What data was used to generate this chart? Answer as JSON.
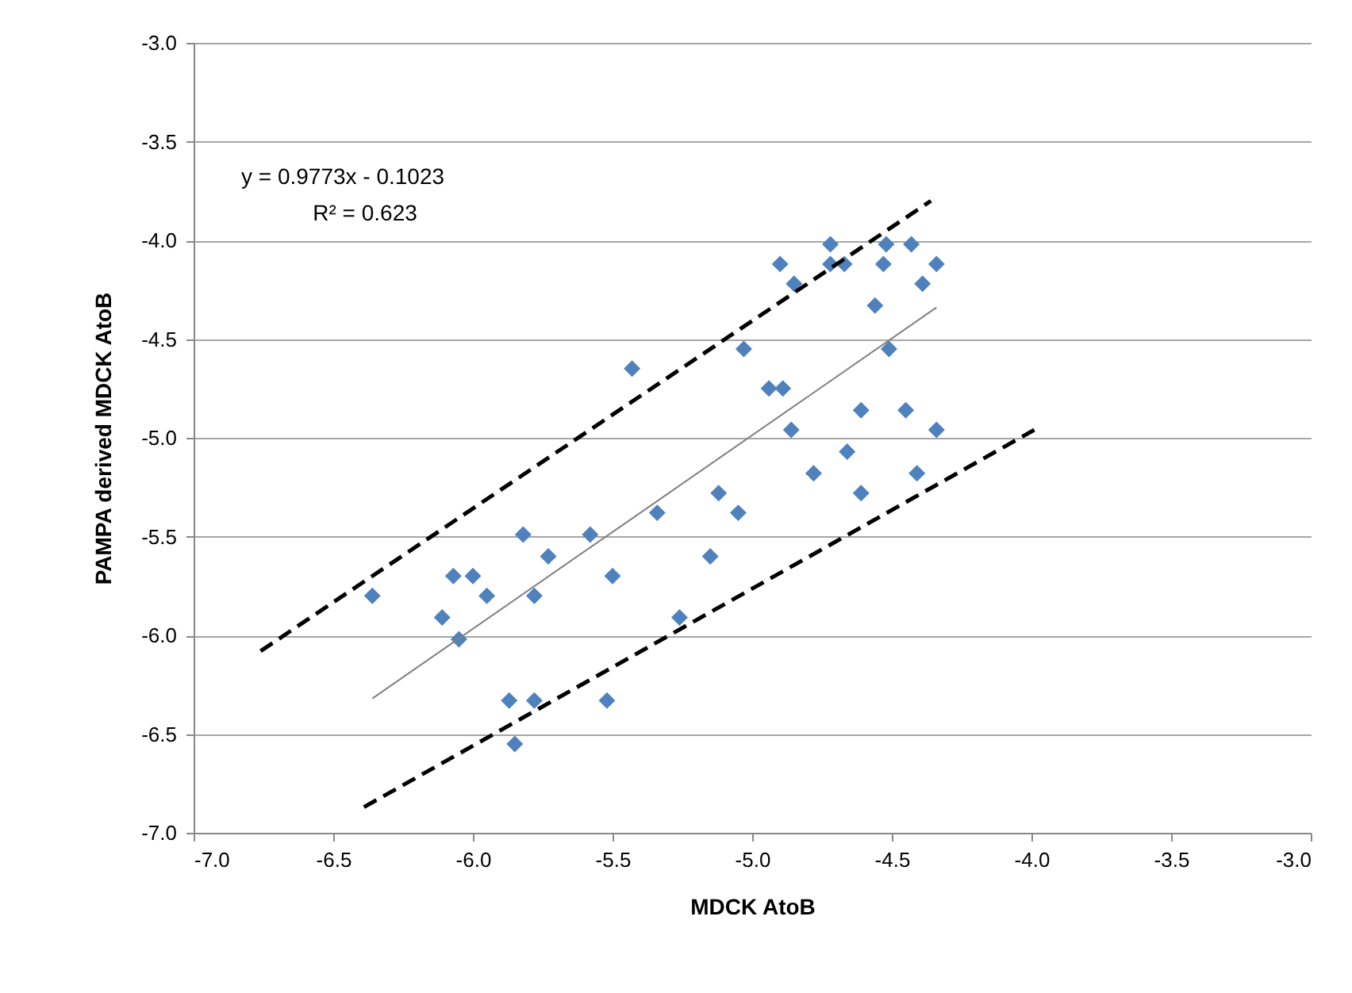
{
  "chart_data": {
    "type": "scatter",
    "xlabel": "MDCK AtoB",
    "ylabel": "PAMPA derived MDCK AtoB",
    "annotations": [
      "y = 0.9773x - 0.1023",
      "R² = 0.623"
    ],
    "xlim": [
      -7,
      -3
    ],
    "ylim": [
      -7,
      -3
    ],
    "xticks": [
      {
        "value": -7,
        "label": "-7.0"
      },
      {
        "value": -6.5,
        "label": "-6.5"
      },
      {
        "value": -6,
        "label": "-6.0"
      },
      {
        "value": -5.5,
        "label": "-5.5"
      },
      {
        "value": -5,
        "label": "-5.0"
      },
      {
        "value": -4.5,
        "label": "-4.5"
      },
      {
        "value": -4,
        "label": "-4.0"
      },
      {
        "value": -3.5,
        "label": "-3.5"
      },
      {
        "value": -3,
        "label": "-3.0"
      }
    ],
    "yticks": [
      {
        "value": -7,
        "label": "-7.0"
      },
      {
        "value": -6.5,
        "label": "-6.5"
      },
      {
        "value": -6,
        "label": "-6.0"
      },
      {
        "value": -5.5,
        "label": "-5.5"
      },
      {
        "value": -5,
        "label": "-5.0"
      },
      {
        "value": -4.5,
        "label": "-4.5"
      },
      {
        "value": -4,
        "label": "-4.0"
      },
      {
        "value": -3.5,
        "label": "-3.5"
      },
      {
        "value": -3,
        "label": "-3.0"
      }
    ],
    "grid": "y",
    "series": [
      {
        "marker": "diamond",
        "color": "#4f81bd",
        "x": [
          -6.36,
          -6.11,
          -6.07,
          -6.05,
          -6.0,
          -5.95,
          -5.87,
          -5.85,
          -5.82,
          -5.78,
          -5.78,
          -5.73,
          -5.58,
          -5.52,
          -5.5,
          -5.43,
          -5.34,
          -5.26,
          -5.15,
          -5.12,
          -5.03,
          -5.05,
          -4.94,
          -4.89,
          -4.9,
          -4.85,
          -4.86,
          -4.78,
          -4.72,
          -4.72,
          -4.67,
          -4.66,
          -4.61,
          -4.61,
          -4.56,
          -4.53,
          -4.52,
          -4.51,
          -4.45,
          -4.43,
          -4.41,
          -4.39,
          -4.34,
          -4.34
        ],
        "values": [
          -5.8,
          -5.91,
          -5.7,
          -6.02,
          -5.7,
          -5.8,
          -6.33,
          -6.55,
          -5.49,
          -6.33,
          -5.8,
          -5.6,
          -5.49,
          -6.33,
          -5.7,
          -4.65,
          -5.38,
          -5.91,
          -5.6,
          -5.28,
          -4.55,
          -5.38,
          -4.75,
          -4.75,
          -4.12,
          -4.22,
          -4.96,
          -5.18,
          -4.02,
          -4.12,
          -4.12,
          -5.07,
          -5.28,
          -4.86,
          -4.33,
          -4.12,
          -4.02,
          -4.55,
          -4.86,
          -4.02,
          -5.18,
          -4.22,
          -4.12,
          -4.96
        ]
      },
      {
        "type": "line",
        "marker": "none",
        "line_style": "solid",
        "color": "#808080",
        "x": [
          -6.36,
          -4.34
        ],
        "values": [
          -6.32,
          -4.34
        ]
      },
      {
        "type": "line",
        "marker": "none",
        "line_style": "dashed",
        "color": "#000000",
        "x": [
          -6.76,
          -4.36
        ],
        "values": [
          -6.08,
          -3.8
        ]
      },
      {
        "type": "line",
        "marker": "none",
        "line_style": "dashed",
        "color": "#000000",
        "x": [
          -6.39,
          -3.99
        ],
        "values": [
          -6.87,
          -4.96
        ]
      }
    ]
  }
}
